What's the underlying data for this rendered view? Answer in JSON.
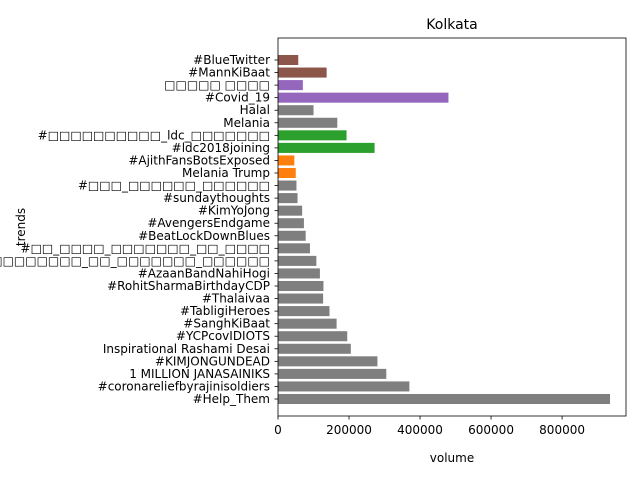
{
  "chart_data": {
    "type": "bar",
    "orientation": "horizontal",
    "title": "Kolkata",
    "xlabel": "volume",
    "ylabel": "trends",
    "xlim": [
      0,
      980000
    ],
    "xticks": [
      0,
      200000,
      400000,
      600000,
      800000
    ],
    "xtick_labels": [
      "0",
      "200000",
      "400000",
      "600000",
      "800000"
    ],
    "grid": false,
    "categories": [
      "#Help_Them",
      "#coronareliefbyrajinisoldiers",
      "1 MILLION JANASAINIKS",
      "#KIMJONGUNDEAD",
      "Inspirational Rashami Desai",
      "#YCPcovIDIOTS",
      "#SanghKiBaat",
      "#TabligiHeroes",
      "#Thalaivaa",
      "#RohitSharmaBirthdayCDP",
      "#AzaanBandNahiHogi",
      "#□□□□□□□□□□□□□_□□_□□□□□□□_□□□□□□",
      "#□□_□□□□_□□□□□□□_□□_□□□□",
      "#BeatLockDownBlues",
      "#AvengersEndgame",
      "#KimYoJong",
      "#sundaythoughts",
      "#□□□_□□□□□□_□□□□□□",
      "Melania Trump",
      "#AjithFansBotsExposed",
      "#ldc2018joining",
      "#□□□□□□□□□□_ldc_□□□□□□□",
      "Melania",
      "Halal",
      "#Covid_19",
      "□□□□□ □□□□",
      "#MannKiBaat",
      "#BlueTwitter"
    ],
    "values": [
      935000,
      370000,
      305000,
      280000,
      205000,
      195000,
      165000,
      145000,
      127000,
      128000,
      118000,
      108000,
      90000,
      78000,
      73000,
      68000,
      55000,
      52000,
      50000,
      46000,
      272000,
      193000,
      167000,
      100000,
      480000,
      70000,
      137000,
      57000
    ],
    "colors": [
      "#7f7f7f",
      "#7f7f7f",
      "#7f7f7f",
      "#7f7f7f",
      "#7f7f7f",
      "#7f7f7f",
      "#7f7f7f",
      "#7f7f7f",
      "#7f7f7f",
      "#7f7f7f",
      "#7f7f7f",
      "#7f7f7f",
      "#7f7f7f",
      "#7f7f7f",
      "#7f7f7f",
      "#7f7f7f",
      "#7f7f7f",
      "#7f7f7f",
      "#ff7f0e",
      "#ff7f0e",
      "#2ca02c",
      "#2ca02c",
      "#7f7f7f",
      "#7f7f7f",
      "#9467bd",
      "#9467bd",
      "#8c564b",
      "#8c564b"
    ]
  }
}
